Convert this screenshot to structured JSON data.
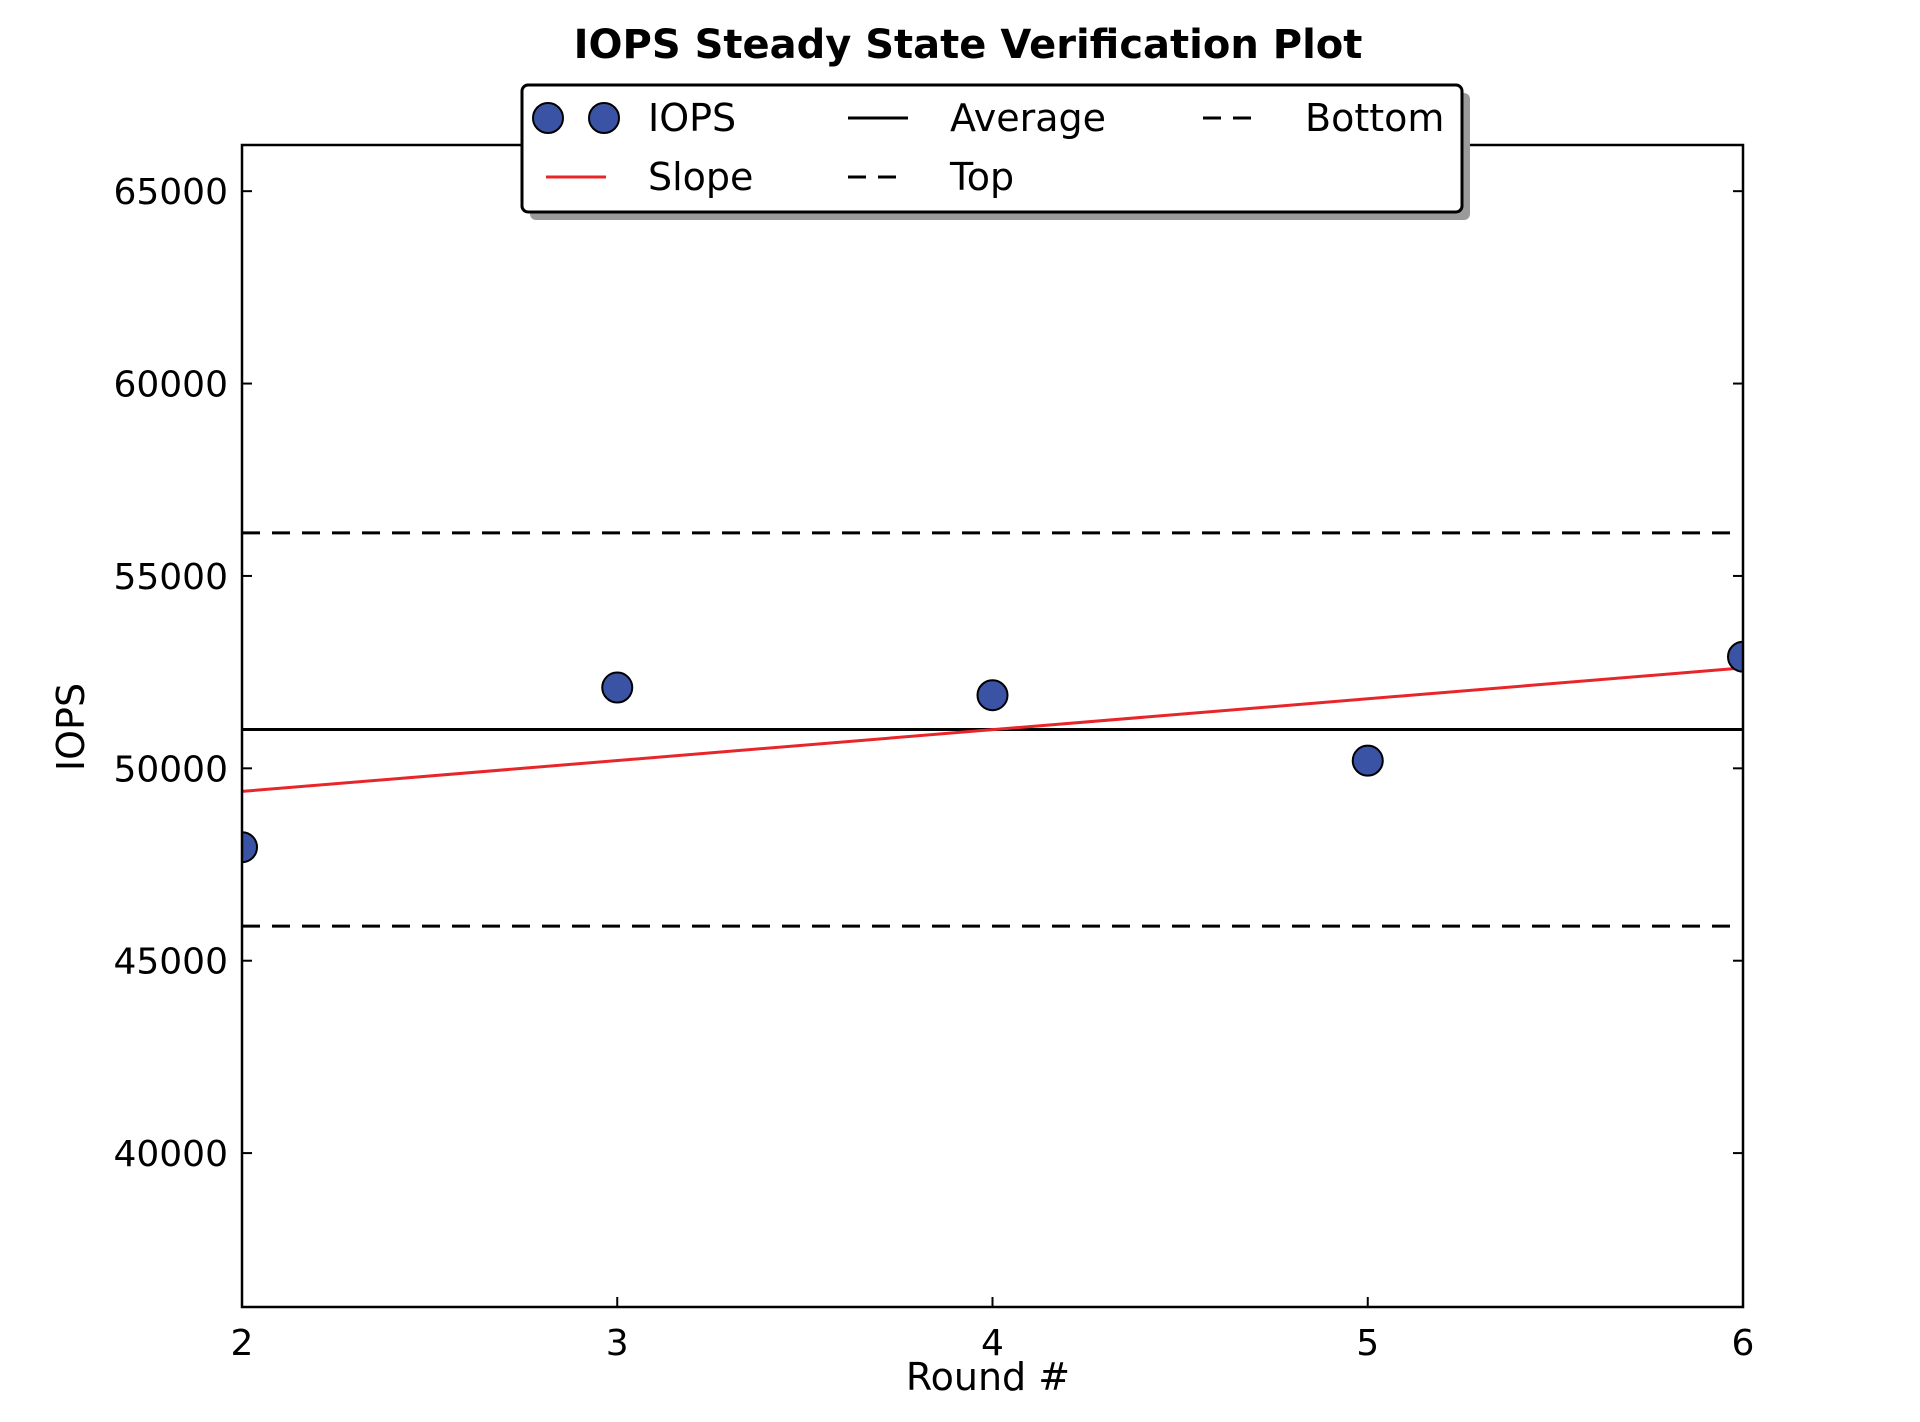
{
  "chart_data": {
    "type": "scatter",
    "title": "IOPS Steady State Verification Plot",
    "xlabel": "Round #",
    "ylabel": "IOPS",
    "xlim": [
      2,
      6
    ],
    "ylim": [
      36000,
      66200
    ],
    "x_ticks": [
      2,
      3,
      4,
      5,
      6
    ],
    "y_ticks": [
      40000,
      45000,
      50000,
      55000,
      60000,
      65000
    ],
    "grid": false,
    "legend_placement": "top-center",
    "series": [
      {
        "name": "IOPS",
        "kind": "scatter",
        "color": "#3a53a4",
        "x": [
          2,
          3,
          4,
          5,
          6
        ],
        "y": [
          47950,
          52100,
          51900,
          50200,
          52900
        ]
      },
      {
        "name": "Average",
        "kind": "hline",
        "color": "#000000",
        "y": 51010
      },
      {
        "name": "Bottom",
        "kind": "hline-dashed",
        "color": "#000000",
        "y": 45900
      },
      {
        "name": "Slope",
        "kind": "line",
        "color": "#e8262a",
        "x": [
          2,
          6
        ],
        "y": [
          49400,
          52610
        ]
      },
      {
        "name": "Top",
        "kind": "hline-dashed",
        "color": "#000000",
        "y": 56120
      }
    ]
  }
}
